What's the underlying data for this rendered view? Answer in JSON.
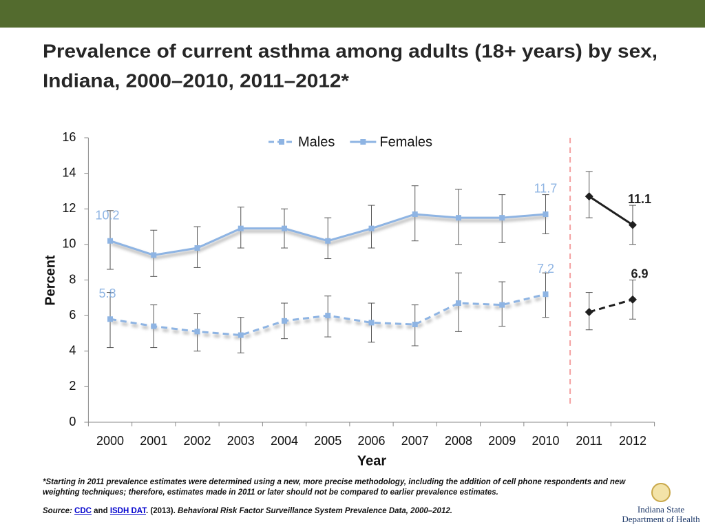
{
  "chart_data": {
    "type": "line",
    "title_lines": [
      "Prevalence of current asthma among adults (18+ years) by sex,",
      "Indiana, 2000–2010, 2011–2012*"
    ],
    "y_label": "Percent",
    "x_label": "Year",
    "categories": [
      "2000",
      "2001",
      "2002",
      "2003",
      "2004",
      "2005",
      "2006",
      "2007",
      "2008",
      "2009",
      "2010",
      "2011",
      "2012"
    ],
    "series": [
      {
        "name": "Males",
        "color": "#8eb4e3",
        "dashed": true,
        "values": [
          5.8,
          5.4,
          5.1,
          4.9,
          5.7,
          6.0,
          5.6,
          5.5,
          6.7,
          6.6,
          7.2,
          6.2,
          6.9
        ],
        "lower": [
          4.2,
          4.2,
          4.0,
          3.9,
          4.7,
          4.8,
          4.5,
          4.3,
          5.1,
          5.4,
          5.9,
          5.2,
          5.8
        ],
        "upper": [
          7.3,
          6.6,
          6.1,
          5.9,
          6.7,
          7.1,
          6.7,
          6.6,
          8.4,
          7.9,
          8.4,
          7.3,
          8.0
        ]
      },
      {
        "name": "Females",
        "color": "#8eb4e3",
        "dashed": false,
        "values": [
          10.2,
          9.4,
          9.8,
          10.9,
          10.9,
          10.2,
          10.9,
          11.7,
          11.5,
          11.5,
          11.7,
          12.7,
          11.1
        ],
        "lower": [
          8.6,
          8.2,
          8.7,
          9.8,
          9.8,
          9.2,
          9.8,
          10.2,
          10.0,
          10.1,
          10.6,
          11.5,
          10.0
        ],
        "upper": [
          11.9,
          10.8,
          11.0,
          12.1,
          12.0,
          11.5,
          12.2,
          13.3,
          13.1,
          12.8,
          12.8,
          14.1,
          12.2
        ]
      }
    ],
    "divider_after": "2010",
    "new_method_color": "#1f1f1f",
    "divider_color": "#f4a0a0",
    "label_points": [
      "2000",
      "2010",
      "2012"
    ],
    "ylim": [
      0,
      16
    ],
    "yticks": [
      0,
      2,
      4,
      6,
      8,
      10,
      12,
      14,
      16
    ],
    "legend": "top"
  },
  "footnote": "*Starting in 2011 prevalence estimates were determined using a new, more precise methodology, including the addition of cell phone respondents and new weighting techniques; therefore, estimates made in 2011 or later should not be compared to earlier prevalence estimates.",
  "source": {
    "label": "Source:",
    "link1": "CDC",
    "and": "and",
    "link2": "ISDH DAT",
    "year": ". (2013).",
    "title": "Behavioral Risk Factor Surveillance System Prevalence Data, 2000–2012."
  },
  "logo": {
    "line1": "Indiana State",
    "line2": "Department of Health"
  }
}
